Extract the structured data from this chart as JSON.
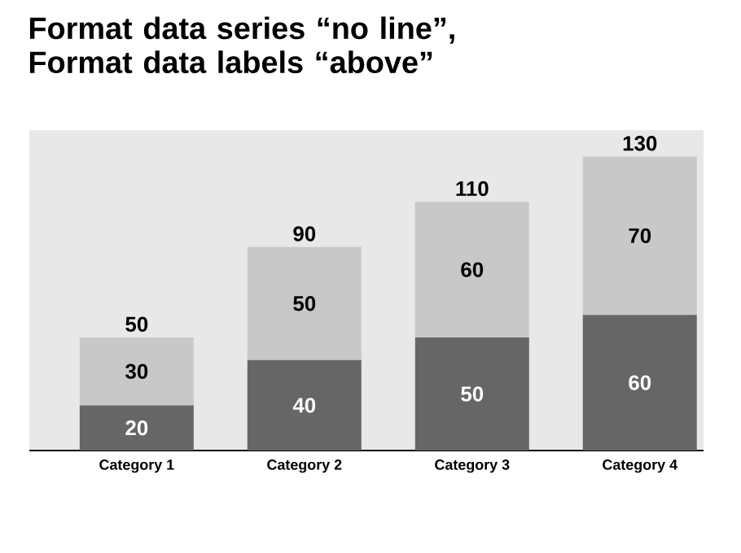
{
  "chart_data": {
    "type": "bar",
    "title": "Format data series “no line”, Format data labels “above”",
    "categories": [
      "Category 1",
      "Category 2",
      "Category 3",
      "Category 4"
    ],
    "series": [
      {
        "color": "#666666",
        "values": [
          20,
          40,
          50,
          60
        ]
      },
      {
        "color": "#c8c8c8",
        "values": [
          30,
          50,
          60,
          70
        ]
      }
    ],
    "stacked": true,
    "data_labels": true,
    "totals": [
      "50",
      "90",
      "110",
      "130"
    ],
    "tick_labels": "x"
  }
}
